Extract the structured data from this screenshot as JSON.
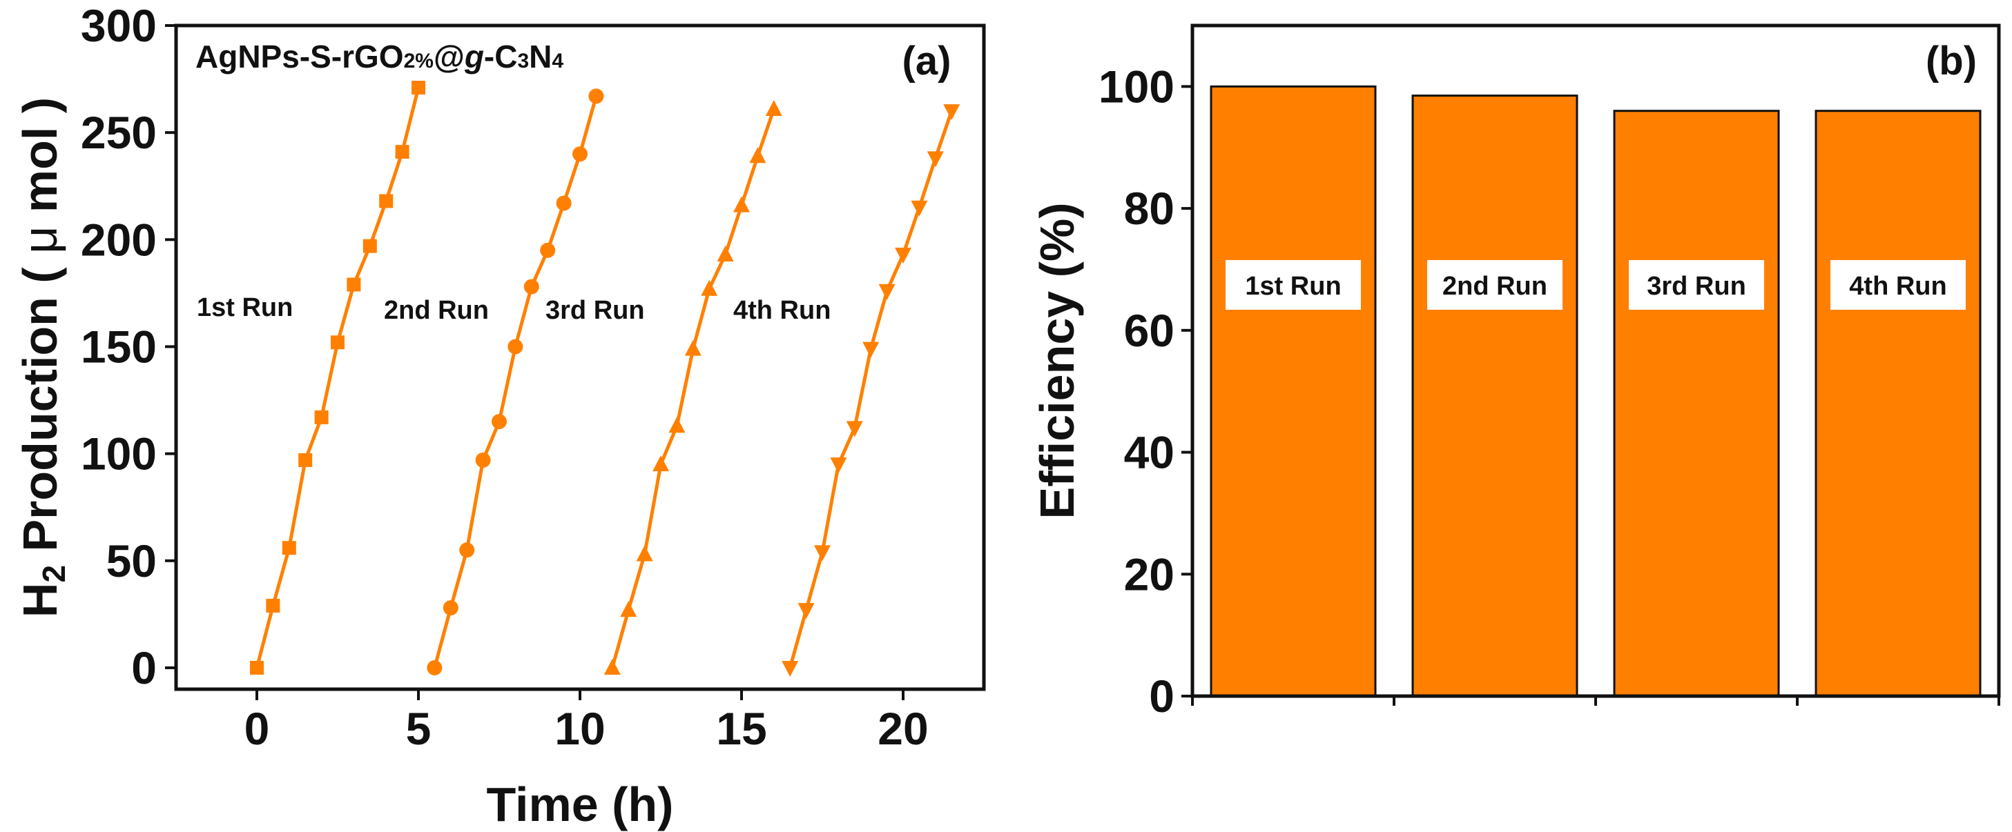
{
  "figure": {
    "series_color": "#FF8000",
    "bar_color": "#FF8000",
    "frame_color": "#111111"
  },
  "chart_data": [
    {
      "type": "line",
      "panel_tag": "(a)",
      "title_parts": {
        "base": "AgNPs-S-rGO",
        "sub": "2%",
        "at": "@",
        "g": "g",
        "dash": "-C",
        "c_sub": "3",
        "n": "N",
        "n_sub": "4"
      },
      "xlabel": "Time (h)",
      "ylabel_parts": {
        "h": "H",
        "sub": "2",
        "rest": " Production ( ",
        "mu": "μ",
        "unit": " mol )"
      },
      "xlim": [
        -2.5,
        22.5
      ],
      "ylim": [
        -10,
        300
      ],
      "xticks": [
        0,
        5,
        10,
        15,
        20
      ],
      "yticks": [
        0,
        50,
        100,
        150,
        200,
        250,
        300
      ],
      "xtick_labels": [
        "0",
        "5",
        "10",
        "15",
        "20"
      ],
      "ytick_labels": [
        "0",
        "50",
        "100",
        "150",
        "200",
        "250",
        "300"
      ],
      "series": [
        {
          "name": "1st Run",
          "marker": "square",
          "x": [
            0,
            0.5,
            1.0,
            1.5,
            2.0,
            2.5,
            3.0,
            3.5,
            4.0,
            4.5,
            5.0
          ],
          "y": [
            0,
            29,
            56,
            97,
            117,
            152,
            179,
            197,
            218,
            241,
            271
          ]
        },
        {
          "name": "2nd Run",
          "marker": "circle",
          "x": [
            5.5,
            6.0,
            6.5,
            7.0,
            7.5,
            8.0,
            8.5,
            9.0,
            9.5,
            10.0,
            10.5
          ],
          "y": [
            0,
            28,
            55,
            97,
            115,
            150,
            178,
            195,
            217,
            240,
            267
          ]
        },
        {
          "name": "3rd Run",
          "marker": "triangle-up",
          "x": [
            11.0,
            11.5,
            12.0,
            12.5,
            13.0,
            13.5,
            14.0,
            14.5,
            15.0,
            15.5,
            16.0
          ],
          "y": [
            0,
            27,
            53,
            95,
            113,
            149,
            177,
            193,
            216,
            239,
            261
          ]
        },
        {
          "name": "4th Run",
          "marker": "triangle-down",
          "x": [
            16.5,
            17.0,
            17.5,
            18.0,
            18.5,
            19.0,
            19.5,
            20.0,
            20.5,
            21.0,
            21.5
          ],
          "y": [
            0,
            27,
            54,
            95,
            112,
            149,
            176,
            193,
            215,
            238,
            260
          ]
        }
      ],
      "annotations": [
        "1st Run",
        "2nd Run",
        "3rd Run",
        "4th Run"
      ]
    },
    {
      "type": "bar",
      "panel_tag": "(b)",
      "categories": [
        "1st Run",
        "2nd Run",
        "3rd Run",
        "4th Run"
      ],
      "values": [
        100,
        98.5,
        96,
        96
      ],
      "ylabel": "Efficiency (%)",
      "xlabel": "",
      "ylim": [
        0,
        110
      ],
      "yticks": [
        0,
        20,
        40,
        60,
        80,
        100
      ],
      "ytick_labels": [
        "0",
        "20",
        "40",
        "60",
        "80",
        "100"
      ]
    }
  ]
}
